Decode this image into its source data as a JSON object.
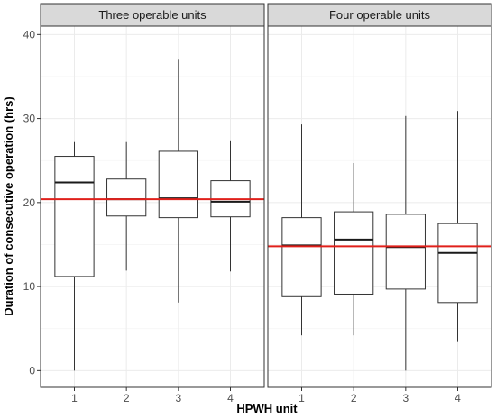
{
  "chart_data": {
    "type": "boxplot",
    "xlabel": "HPWH unit",
    "ylabel": "Duration of consecutive operation (hrs)",
    "ylim": [
      -2,
      41
    ],
    "yticks": [
      0,
      10,
      20,
      30,
      40
    ],
    "categories": [
      "1",
      "2",
      "3",
      "4"
    ],
    "grid": true,
    "colors": {
      "reference_line": "#e0201b",
      "box_stroke": "#333333",
      "strip_fill": "#d9d9d9",
      "grid": "#ebebeb"
    },
    "panels": [
      {
        "title": "Three operable units",
        "reference_line": 20.4,
        "boxes": [
          {
            "category": "1",
            "min": 0.0,
            "q1": 11.2,
            "median": 22.4,
            "q3": 25.5,
            "max": 27.2
          },
          {
            "category": "2",
            "min": 11.9,
            "q1": 18.4,
            "median": 20.4,
            "q3": 22.8,
            "max": 27.2
          },
          {
            "category": "3",
            "min": 8.1,
            "q1": 18.2,
            "median": 20.5,
            "q3": 26.1,
            "max": 37.0
          },
          {
            "category": "4",
            "min": 11.8,
            "q1": 18.3,
            "median": 20.1,
            "q3": 22.6,
            "max": 27.4
          }
        ]
      },
      {
        "title": "Four operable units",
        "reference_line": 14.8,
        "boxes": [
          {
            "category": "1",
            "min": 4.2,
            "q1": 8.8,
            "median": 14.9,
            "q3": 18.2,
            "max": 29.3
          },
          {
            "category": "2",
            "min": 4.2,
            "q1": 9.1,
            "median": 15.6,
            "q3": 18.9,
            "max": 24.7
          },
          {
            "category": "3",
            "min": 0.0,
            "q1": 9.7,
            "median": 14.7,
            "q3": 18.6,
            "max": 30.3
          },
          {
            "category": "4",
            "min": 3.4,
            "q1": 8.1,
            "median": 14.0,
            "q3": 17.5,
            "max": 30.9
          }
        ]
      }
    ]
  }
}
